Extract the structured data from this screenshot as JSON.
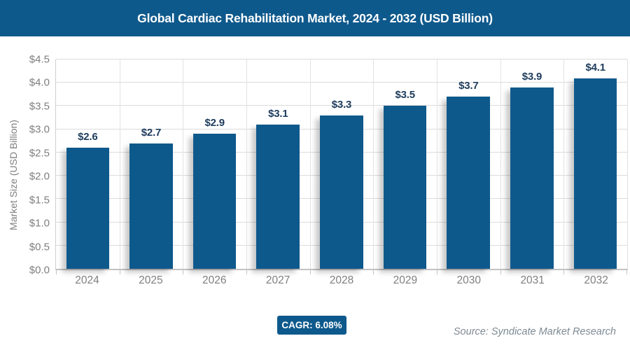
{
  "header": {
    "title": "Global Cardiac Rehabilitation Market, 2024 - 2032 (USD Billion)",
    "bg_color": "#0E598C",
    "text_color": "#FFFFFF"
  },
  "chart_data": {
    "type": "bar",
    "title": "Global Cardiac Rehabilitation Market, 2024 - 2032 (USD Billion)",
    "categories": [
      "2024",
      "2025",
      "2026",
      "2027",
      "2028",
      "2029",
      "2030",
      "2031",
      "2032"
    ],
    "values": [
      2.6,
      2.7,
      2.9,
      3.1,
      3.3,
      3.5,
      3.7,
      3.9,
      4.1
    ],
    "value_labels": [
      "$2.6",
      "$2.7",
      "$2.9",
      "$3.1",
      "$3.3",
      "$3.5",
      "$3.7",
      "$3.9",
      "$4.1"
    ],
    "xlabel": "",
    "ylabel": "Market Size (USD Billion)",
    "ylim": [
      0,
      4.5
    ],
    "ytick_step": 0.5,
    "ytick_labels": [
      "$0.0",
      "$0.5",
      "$1.0",
      "$1.5",
      "$2.0",
      "$2.5",
      "$3.0",
      "$3.5",
      "$4.0",
      "$4.5"
    ],
    "grid": true,
    "legend": false,
    "bar_color": "#0E598C",
    "value_label_color": "#1E3C5C",
    "tick_label_color": "#7F7F7F"
  },
  "footer": {
    "cagr_label": "CAGR: 6.08%",
    "source": "Source: Syndicate Market Research"
  }
}
